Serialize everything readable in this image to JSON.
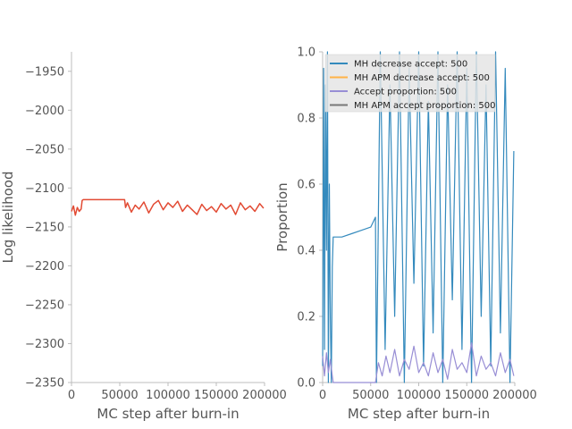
{
  "chart_data": [
    {
      "type": "line",
      "title": "",
      "xlabel": "MC step after burn-in",
      "ylabel": "Log likelihood",
      "xlim": [
        0,
        200000
      ],
      "ylim": [
        -2350,
        -1925
      ],
      "x_ticks": [
        0,
        50000,
        100000,
        150000,
        200000
      ],
      "x_tick_labels": [
        "0",
        "50000",
        "100000",
        "150000",
        "200000"
      ],
      "y_ticks": [
        -2350,
        -2300,
        -2250,
        -2200,
        -2150,
        -2100,
        -2050,
        -2000,
        -1950
      ],
      "y_tick_labels": [
        "−2350",
        "−2300",
        "−2250",
        "−2200",
        "−2150",
        "−2100",
        "−2050",
        "−2000",
        "−1950"
      ],
      "grid": false,
      "series": [
        {
          "color": "#e24a33",
          "x": [
            0,
            2000,
            4000,
            6000,
            8000,
            10000,
            11000,
            12000,
            30000,
            55000,
            56000,
            58000,
            62000,
            66000,
            70000,
            75000,
            80000,
            85000,
            90000,
            95000,
            100000,
            105000,
            110000,
            115000,
            120000,
            125000,
            130000,
            135000,
            140000,
            145000,
            150000,
            155000,
            160000,
            165000,
            170000,
            175000,
            180000,
            185000,
            190000,
            195000,
            199000
          ],
          "y": [
            -2130,
            -2123,
            -2135,
            -2125,
            -2130,
            -2127,
            -2116,
            -2115,
            -2115,
            -2115,
            -2125,
            -2119,
            -2131,
            -2122,
            -2127,
            -2118,
            -2132,
            -2121,
            -2116,
            -2128,
            -2119,
            -2125,
            -2117,
            -2130,
            -2122,
            -2128,
            -2134,
            -2121,
            -2129,
            -2124,
            -2131,
            -2120,
            -2127,
            -2122,
            -2134,
            -2119,
            -2128,
            -2123,
            -2130,
            -2120,
            -2126
          ]
        }
      ]
    },
    {
      "type": "line",
      "title": "",
      "xlabel": "MC step after burn-in",
      "ylabel": "Proportion",
      "xlim": [
        0,
        200000
      ],
      "ylim": [
        0.0,
        1.0
      ],
      "x_ticks": [
        0,
        50000,
        100000,
        150000,
        200000
      ],
      "x_tick_labels": [
        "0",
        "50000",
        "100000",
        "150000",
        "200000"
      ],
      "y_ticks": [
        0.0,
        0.2,
        0.4,
        0.6,
        0.8,
        1.0
      ],
      "y_tick_labels": [
        "0.0",
        "0.2",
        "0.4",
        "0.6",
        "0.8",
        "1.0"
      ],
      "grid": false,
      "legend_placement": "top",
      "series": [
        {
          "name": "MH decrease accept: 500",
          "color": "#348abd",
          "x": [
            0,
            1000,
            2000,
            3000,
            4000,
            5000,
            6000,
            7000,
            8000,
            9000,
            10000,
            11000,
            12000,
            20000,
            30000,
            40000,
            50000,
            55000,
            56000,
            60000,
            65000,
            70000,
            75000,
            80000,
            85000,
            90000,
            95000,
            100000,
            105000,
            110000,
            115000,
            120000,
            125000,
            130000,
            135000,
            140000,
            145000,
            150000,
            155000,
            160000,
            165000,
            170000,
            175000,
            180000,
            185000,
            190000,
            195000,
            199000
          ],
          "y": [
            0.05,
            0.95,
            0.1,
            0.9,
            0.4,
            1.0,
            0.0,
            0.6,
            0.2,
            0.0,
            0.35,
            0.44,
            0.44,
            0.44,
            0.45,
            0.46,
            0.47,
            0.5,
            0.0,
            1.0,
            0.1,
            0.9,
            0.2,
            1.0,
            0.0,
            0.95,
            0.3,
            1.0,
            0.05,
            0.85,
            0.15,
            1.0,
            0.0,
            0.9,
            0.25,
            1.0,
            0.1,
            0.95,
            0.0,
            1.0,
            0.2,
            0.9,
            0.05,
            1.0,
            0.15,
            0.95,
            0.0,
            0.7
          ]
        },
        {
          "name": "MH APM decrease accept: 500",
          "color": "#ffb347",
          "x": [],
          "y": []
        },
        {
          "name": "Accept proportion: 500",
          "color": "#988ed5",
          "x": [
            0,
            2000,
            4000,
            6000,
            8000,
            10000,
            11000,
            55000,
            58000,
            62000,
            66000,
            70000,
            75000,
            80000,
            85000,
            90000,
            95000,
            100000,
            105000,
            110000,
            115000,
            120000,
            125000,
            130000,
            135000,
            140000,
            145000,
            150000,
            155000,
            160000,
            165000,
            170000,
            175000,
            180000,
            185000,
            190000,
            195000,
            199000
          ],
          "y": [
            0.08,
            0.02,
            0.09,
            0.03,
            0.07,
            0.02,
            0.0,
            0.0,
            0.06,
            0.02,
            0.08,
            0.03,
            0.1,
            0.02,
            0.07,
            0.04,
            0.11,
            0.03,
            0.06,
            0.02,
            0.09,
            0.03,
            0.07,
            0.01,
            0.1,
            0.04,
            0.06,
            0.03,
            0.12,
            0.02,
            0.08,
            0.04,
            0.06,
            0.02,
            0.09,
            0.03,
            0.07,
            0.02
          ]
        },
        {
          "name": "MH APM accept proportion: 500",
          "color": "#777777",
          "x": [],
          "y": []
        }
      ]
    }
  ]
}
